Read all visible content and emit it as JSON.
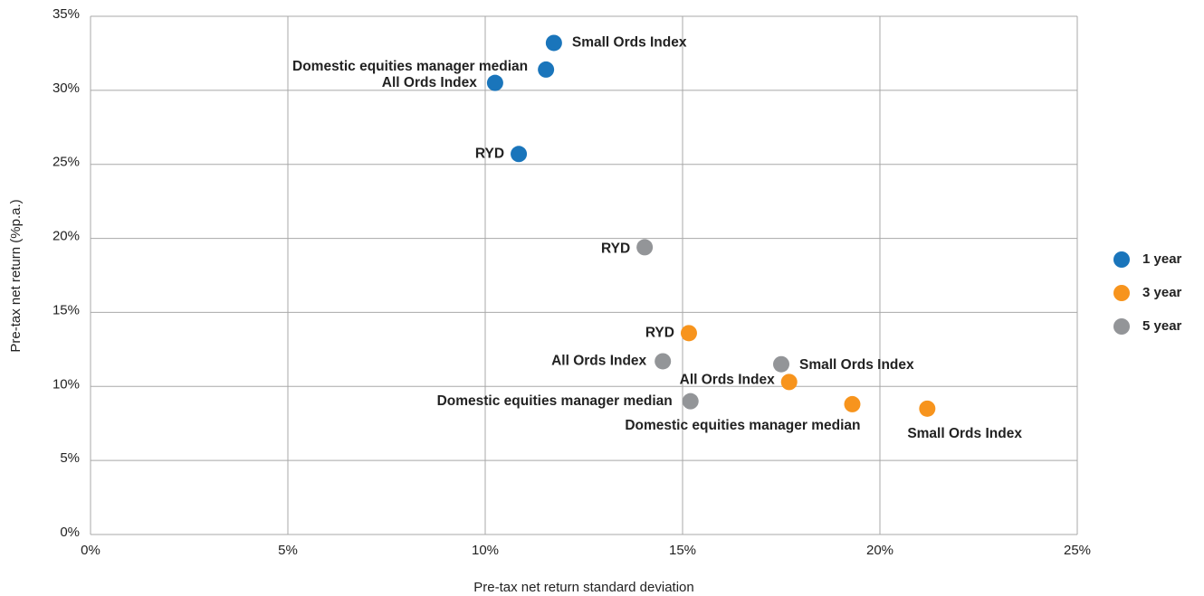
{
  "chart_data": {
    "type": "scatter",
    "x_label": "Pre-tax net return standard deviation",
    "y_label": "Pre-tax net return (%p.a.)",
    "xlim": [
      0,
      25
    ],
    "xticks": [
      {
        "value": 0,
        "label": "0%"
      },
      {
        "value": 5,
        "label": "5%"
      },
      {
        "value": 10,
        "label": "10%"
      },
      {
        "value": 15,
        "label": "15%"
      },
      {
        "value": 20,
        "label": "20%"
      },
      {
        "value": 25,
        "label": "25%"
      }
    ],
    "ylim": [
      0,
      35
    ],
    "yticks": [
      {
        "value": 0,
        "label": "0%"
      },
      {
        "value": 5,
        "label": "5%"
      },
      {
        "value": 10,
        "label": "10%"
      },
      {
        "value": 15,
        "label": "15%"
      },
      {
        "value": 20,
        "label": "20%"
      },
      {
        "value": 25,
        "label": "25%"
      },
      {
        "value": 30,
        "label": "30%"
      },
      {
        "value": 35,
        "label": "35%"
      }
    ],
    "grid": true,
    "legend": "right",
    "series": [
      {
        "name": "1 year",
        "color": "#1a75bb",
        "labels": [
          "Small Ords Index",
          "Domestic equities manager median",
          "All Ords Index",
          "RYD"
        ],
        "x": [
          11.74,
          11.54,
          10.25,
          10.85
        ],
        "values": [
          33.2,
          31.4,
          30.5,
          25.7
        ]
      },
      {
        "name": "3 year",
        "color": "#f7941d",
        "labels": [
          "RYD",
          "All Ords Index",
          "Domestic equities manager median",
          "Small Ords Index"
        ],
        "x": [
          15.16,
          17.7,
          19.3,
          21.2
        ],
        "values": [
          13.6,
          10.3,
          8.8,
          8.5
        ]
      },
      {
        "name": "5 year",
        "color": "#939598",
        "labels": [
          "RYD",
          "All Ords Index",
          "Small Ords Index",
          "Domestic equities manager median"
        ],
        "x": [
          14.04,
          14.5,
          17.5,
          15.2
        ],
        "values": [
          19.4,
          11.7,
          11.5,
          9.0
        ]
      }
    ]
  }
}
